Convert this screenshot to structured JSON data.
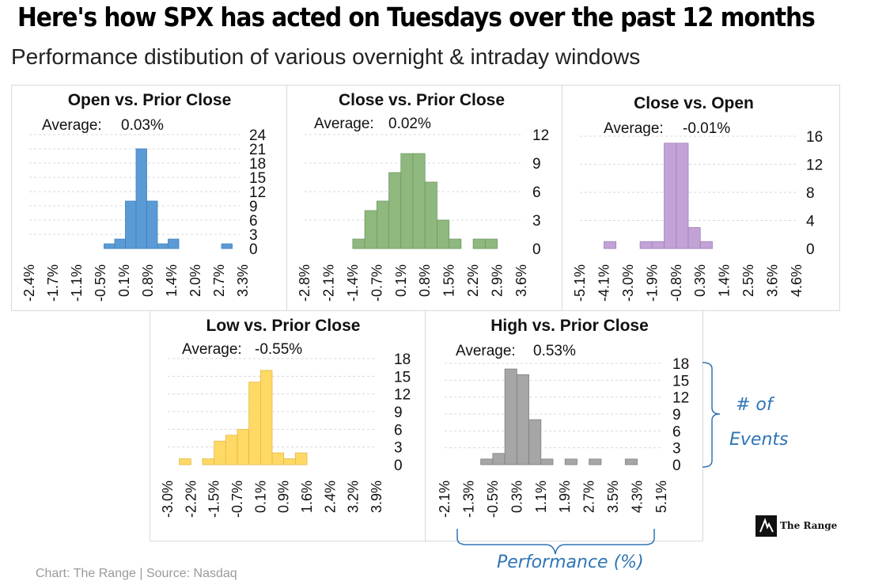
{
  "header": {
    "title_before": "Here's how SPX has acted on ",
    "title_highlight": "Tuesdays",
    "title_after": " over the past 12 months",
    "subtitle": "Performance distibution of various overnight & intraday windows"
  },
  "footer": {
    "source": "Chart: The Range | Source: Nasdaq",
    "logo_text": "The Range"
  },
  "annotations": {
    "y_label_line1": "# of",
    "y_label_line2": "Events",
    "x_label": "Performance (%)",
    "bracket_color": "#2e75b6"
  },
  "chart_data": [
    {
      "type": "bar",
      "title": "Open vs. Prior Close",
      "average_label": "Average:",
      "average_value": "0.03%",
      "color": "#5b9bd5",
      "edge": "#3f7fbf",
      "x_ticks": [
        "-2.4%",
        "-1.7%",
        "-1.1%",
        "-0.5%",
        "0.1%",
        "0.8%",
        "1.4%",
        "2.0%",
        "2.7%",
        "3.3%"
      ],
      "y_ticks": [
        "0",
        "3",
        "6",
        "9",
        "12",
        "15",
        "18",
        "21",
        "24"
      ],
      "ylim": [
        0,
        24
      ],
      "bins": 20,
      "values": [
        0,
        0,
        0,
        0,
        0,
        0,
        0,
        1,
        2,
        10,
        21,
        10,
        1,
        2,
        0,
        0,
        0,
        0,
        1,
        0
      ]
    },
    {
      "type": "bar",
      "title": "Close vs. Prior Close",
      "average_label": "Average:",
      "average_value": "0.02%",
      "color": "#8fb87f",
      "edge": "#6f9a60",
      "x_ticks": [
        "-2.8%",
        "-2.1%",
        "-1.4%",
        "-0.7%",
        "0.1%",
        "0.8%",
        "1.5%",
        "2.2%",
        "2.9%",
        "3.6%"
      ],
      "y_ticks": [
        "0",
        "3",
        "6",
        "9",
        "12"
      ],
      "ylim": [
        0,
        12
      ],
      "bins": 18,
      "values": [
        0,
        0,
        0,
        0,
        1,
        4,
        5,
        8,
        10,
        10,
        7,
        3,
        1,
        0,
        1,
        1,
        0,
        0
      ]
    },
    {
      "type": "bar",
      "title": "Close vs. Open",
      "average_label": "Average:",
      "average_value": "-0.01%",
      "color": "#c3a3d6",
      "edge": "#a07fba",
      "x_ticks": [
        "-5.1%",
        "-4.1%",
        "-3.0%",
        "-1.9%",
        "-0.8%",
        "0.3%",
        "1.4%",
        "2.5%",
        "3.6%",
        "4.6%"
      ],
      "y_ticks": [
        "0",
        "4",
        "8",
        "12",
        "16"
      ],
      "ylim": [
        0,
        16
      ],
      "bins": 18,
      "values": [
        0,
        0,
        1,
        0,
        0,
        1,
        1,
        15,
        15,
        3,
        1,
        0,
        0,
        0,
        0,
        0,
        0,
        0
      ]
    },
    {
      "type": "bar",
      "title": "Low vs. Prior Close",
      "average_label": "Average:",
      "average_value": "-0.55%",
      "color": "#ffd966",
      "edge": "#e0b93e",
      "x_ticks": [
        "-3.0%",
        "-2.2%",
        "-1.5%",
        "-0.7%",
        "0.1%",
        "0.9%",
        "1.6%",
        "2.4%",
        "3.2%",
        "3.9%"
      ],
      "y_ticks": [
        "0",
        "3",
        "6",
        "9",
        "12",
        "15",
        "18"
      ],
      "ylim": [
        0,
        18
      ],
      "bins": 18,
      "values": [
        0,
        1,
        0,
        1,
        4,
        5,
        6,
        14,
        16,
        2,
        1,
        2,
        0,
        0,
        0,
        0,
        0,
        0
      ]
    },
    {
      "type": "bar",
      "title": "High vs. Prior Close",
      "average_label": "Average:",
      "average_value": "0.53%",
      "color": "#a6a6a6",
      "edge": "#808080",
      "x_ticks": [
        "-2.1%",
        "-1.3%",
        "-0.5%",
        "0.3%",
        "1.1%",
        "1.9%",
        "2.7%",
        "3.5%",
        "4.3%",
        "5.1%"
      ],
      "y_ticks": [
        "0",
        "3",
        "6",
        "9",
        "12",
        "15",
        "18"
      ],
      "ylim": [
        0,
        18
      ],
      "bins": 18,
      "values": [
        0,
        0,
        0,
        1,
        2,
        17,
        16,
        8,
        1,
        0,
        1,
        0,
        1,
        0,
        0,
        1,
        0,
        0
      ]
    }
  ]
}
